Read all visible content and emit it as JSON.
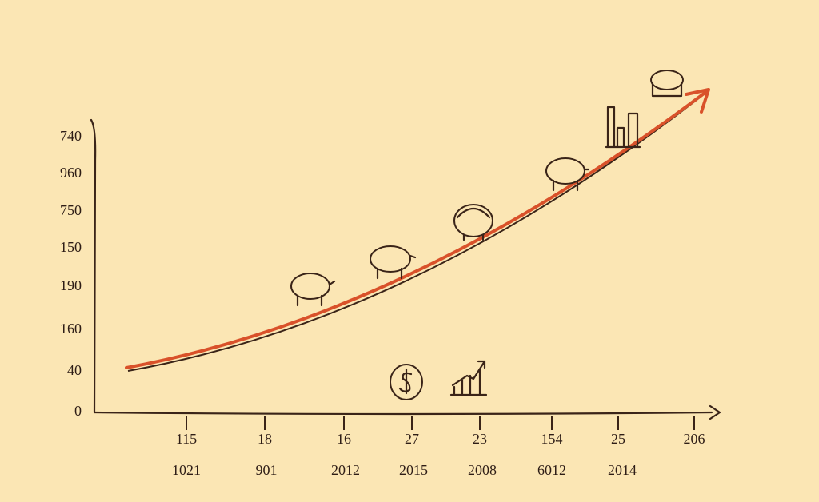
{
  "y_axis_labels": [
    "740",
    "960",
    "750",
    "150",
    "190",
    "160",
    "40",
    "0"
  ],
  "x_labels_top": [
    "115",
    "18",
    "16",
    "27",
    "23",
    "154",
    "25",
    "206"
  ],
  "x_labels_bottom": [
    "1021",
    "901",
    "2012",
    "2015",
    "2008",
    "6012",
    "2014"
  ]
}
